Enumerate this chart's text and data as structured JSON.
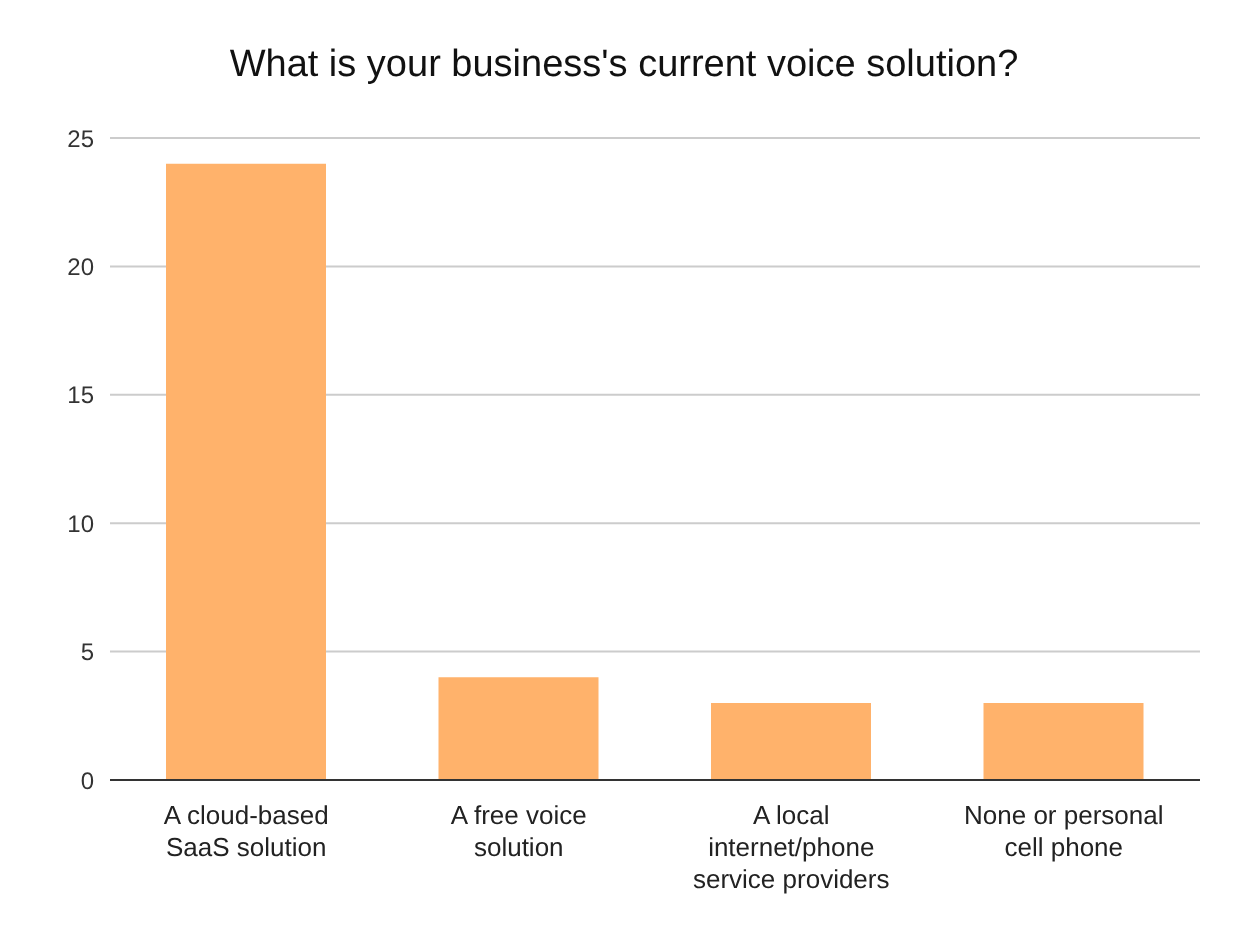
{
  "chart_data": {
    "type": "bar",
    "title": "What is your business's current voice solution?",
    "categories": [
      "A cloud-based SaaS solution",
      "A free voice solution",
      "A local internet/phone service providers",
      "None or personal cell phone"
    ],
    "values": [
      24,
      4,
      3,
      3
    ],
    "color": "#ffb26b",
    "ylim": [
      0,
      25
    ],
    "yticks": [
      0,
      5,
      10,
      15,
      20,
      25
    ],
    "grid": "y",
    "legend": false
  }
}
